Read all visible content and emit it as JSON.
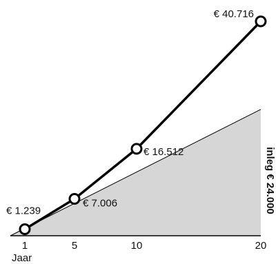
{
  "chart_data": {
    "type": "line",
    "x": [
      1,
      5,
      10,
      20
    ],
    "series": [
      {
        "values": [
          1239,
          7006,
          16512,
          40716
        ],
        "labels": [
          "€ 1.239",
          "€ 7.006",
          "€ 16.512",
          "€ 40.716"
        ]
      }
    ],
    "area": {
      "label": "inleg € 24.000",
      "values": [
        0,
        24000
      ],
      "x": [
        1,
        20
      ]
    },
    "x_tick_labels": [
      "1",
      "5",
      "10",
      "20"
    ],
    "xlabel": "Jaar",
    "ylabel": "",
    "title": "",
    "grid": false,
    "colors": {
      "line": "#000000",
      "marker_fill": "#ffffff",
      "area_fill": "#d6d6d6",
      "area_edge": "#000000"
    }
  }
}
